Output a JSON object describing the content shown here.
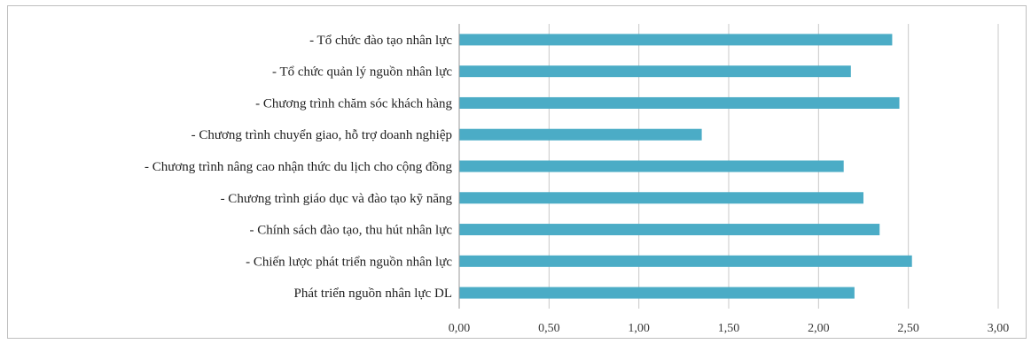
{
  "chart_data": {
    "type": "bar",
    "orientation": "horizontal",
    "categories": [
      "- Tổ chức đào tạo nhân lực",
      "- Tổ chức quản lý nguồn nhân lực",
      "- Chương trình chăm sóc khách hàng",
      "- Chương trình chuyển giao, hỗ trợ doanh nghiệp",
      "- Chương trình nâng cao nhận thức du lịch cho cộng đồng",
      "- Chương trình giáo dục và đào tạo kỹ năng",
      "- Chính sách đào tạo, thu hút nhân lực",
      "- Chiến lược phát triển nguồn nhân lực",
      "Phát triển nguồn nhân lực DL"
    ],
    "values": [
      2.41,
      2.18,
      2.45,
      1.35,
      2.14,
      2.25,
      2.34,
      2.52,
      2.2
    ],
    "xlim": [
      0,
      3
    ],
    "ticks": [
      0,
      0.5,
      1.0,
      1.5,
      2.0,
      2.5,
      3.0
    ],
    "tick_labels": [
      "0,00",
      "0,50",
      "1,00",
      "1,50",
      "2,00",
      "2,50",
      "3,00"
    ],
    "bar_color": "#4BACC6",
    "grid": true,
    "title": "",
    "xlabel": "",
    "ylabel": ""
  }
}
